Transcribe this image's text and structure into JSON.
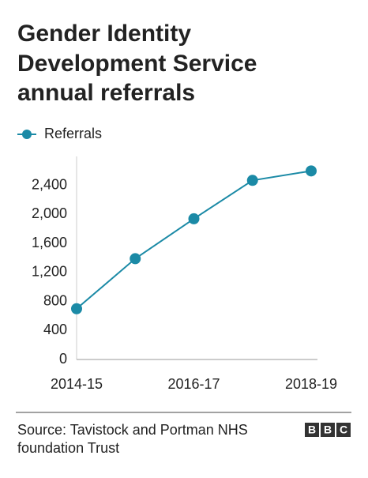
{
  "chart_data": {
    "type": "line",
    "title": [
      "Gender Identity",
      "Development Service",
      "annual referrals"
    ],
    "categories": [
      "2014-15",
      null,
      "2016-17",
      null,
      "2018-19"
    ],
    "series": [
      {
        "name": "Referrals",
        "color": "#1b8aa6",
        "values": [
          700,
          1390,
          1940,
          2470,
          2600
        ]
      }
    ],
    "ylim": [
      0,
      2800
    ],
    "yticks": [
      0,
      400,
      800,
      {
        "value": 1200,
        "label": "1,200"
      },
      {
        "value": 1600,
        "label": "1,600"
      },
      {
        "value": 2000,
        "label": "2,000"
      },
      {
        "value": 2400,
        "label": "2,400"
      }
    ],
    "grid": false,
    "source": [
      "Source: Tavistock and Portman NHS",
      "foundation Trust"
    ],
    "logo": [
      "B",
      "B",
      "C"
    ]
  }
}
